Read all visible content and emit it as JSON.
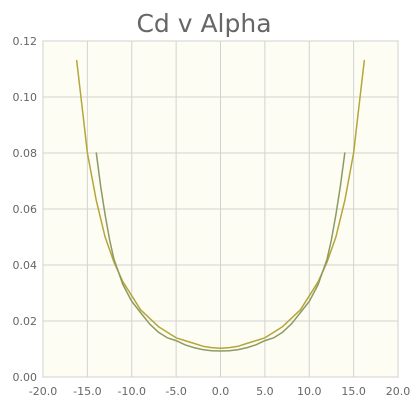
{
  "chart_data": {
    "type": "line",
    "title": "Cd v Alpha",
    "xlabel": "",
    "ylabel": "",
    "xlim": [
      -20,
      20
    ],
    "ylim": [
      0,
      0.12
    ],
    "x_ticks": [
      "-20.0",
      "-15.0",
      "-10.0",
      "-5.0",
      "0.0",
      "5.0",
      "10.0",
      "15.0",
      "20.0"
    ],
    "y_ticks": [
      "0.00",
      "0.02",
      "0.04",
      "0.06",
      "0.08",
      "0.10",
      "0.12"
    ],
    "grid": true,
    "background_color": "#fefdf3",
    "series": [
      {
        "color": "#b5a53a",
        "x": [
          -16.2,
          -15.5,
          -15.0,
          -14.0,
          -13.0,
          -12.0,
          -11.0,
          -10.0,
          -9.0,
          -8.0,
          -7.0,
          -6.0,
          -5.0,
          -4.0,
          -3.0,
          -2.0,
          -1.0,
          0.0,
          1.0,
          2.0,
          3.0,
          4.0,
          5.0,
          6.0,
          7.0,
          8.0,
          9.0,
          10.0,
          11.0,
          12.0,
          13.0,
          14.0,
          15.0,
          15.5,
          16.2
        ],
        "y": [
          0.113,
          0.094,
          0.08,
          0.063,
          0.05,
          0.041,
          0.034,
          0.029,
          0.024,
          0.021,
          0.018,
          0.016,
          0.014,
          0.013,
          0.012,
          0.011,
          0.0105,
          0.0103,
          0.0105,
          0.011,
          0.012,
          0.013,
          0.014,
          0.016,
          0.018,
          0.021,
          0.024,
          0.029,
          0.034,
          0.041,
          0.05,
          0.063,
          0.08,
          0.094,
          0.113
        ]
      },
      {
        "color": "#8c9b62",
        "x": [
          -14.0,
          -13.5,
          -13.0,
          -12.5,
          -12.0,
          -11.0,
          -10.0,
          -9.0,
          -8.0,
          -7.0,
          -6.0,
          -5.0,
          -4.0,
          -3.0,
          -2.0,
          -1.0,
          0.0,
          1.0,
          2.0,
          3.0,
          4.0,
          5.0,
          6.0,
          7.0,
          8.0,
          9.0,
          10.0,
          11.0,
          12.0,
          12.5,
          13.0,
          13.5,
          14.0
        ],
        "y": [
          0.08,
          0.068,
          0.058,
          0.049,
          0.042,
          0.033,
          0.027,
          0.023,
          0.019,
          0.016,
          0.014,
          0.013,
          0.0115,
          0.0105,
          0.0098,
          0.0094,
          0.0093,
          0.0094,
          0.0098,
          0.0105,
          0.0115,
          0.013,
          0.014,
          0.016,
          0.019,
          0.023,
          0.027,
          0.033,
          0.042,
          0.049,
          0.058,
          0.068,
          0.08
        ]
      }
    ]
  }
}
